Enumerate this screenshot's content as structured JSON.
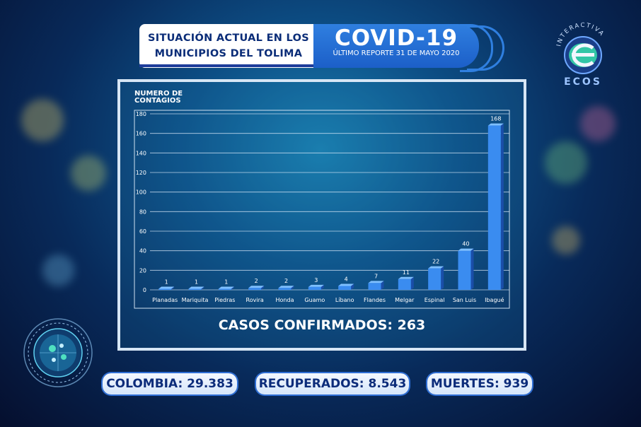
{
  "header": {
    "title_line1": "SITUACIÓN ACTUAL EN LOS",
    "title_line2": "MUNICIPIOS DEL TOLIMA",
    "covid_title": "COVID-19",
    "report_date": "ÚLTIMO REPORTE 31 DE MAYO 2020"
  },
  "logo": {
    "top_text": "INTERACTIVA",
    "brand": "ECOS",
    "icon": "ecos-e-logo"
  },
  "summary": {
    "casos_confirmados": "CASOS CONFIRMADOS: 263"
  },
  "stats": {
    "colombia": "COLOMBIA: 29.383",
    "recuperados": "RECUPERADOS: 8.543",
    "muertes": "MUERTES: 939"
  },
  "decor": {
    "virus_icon": "coronavirus-globe-icon"
  },
  "colors": {
    "bar": "#3a8cf0",
    "bar_dark": "#1a4ea8",
    "accent": "#2f7fe0",
    "text_dark": "#0b2d78"
  },
  "chart_data": {
    "type": "bar",
    "ylabel": "NUMERO DE CONTAGIOS",
    "ylim": [
      0,
      180
    ],
    "yticks": [
      0,
      20,
      40,
      60,
      80,
      100,
      120,
      140,
      160,
      180
    ],
    "grid": true,
    "categories": [
      "Planadas",
      "Mariquita",
      "Piedras",
      "Rovira",
      "Honda",
      "Guamo",
      "Líbano",
      "Flandes",
      "Melgar",
      "Espinal",
      "San Luis",
      "Ibagué"
    ],
    "values": [
      1,
      1,
      1,
      2,
      2,
      3,
      4,
      7,
      11,
      22,
      40,
      168
    ]
  }
}
